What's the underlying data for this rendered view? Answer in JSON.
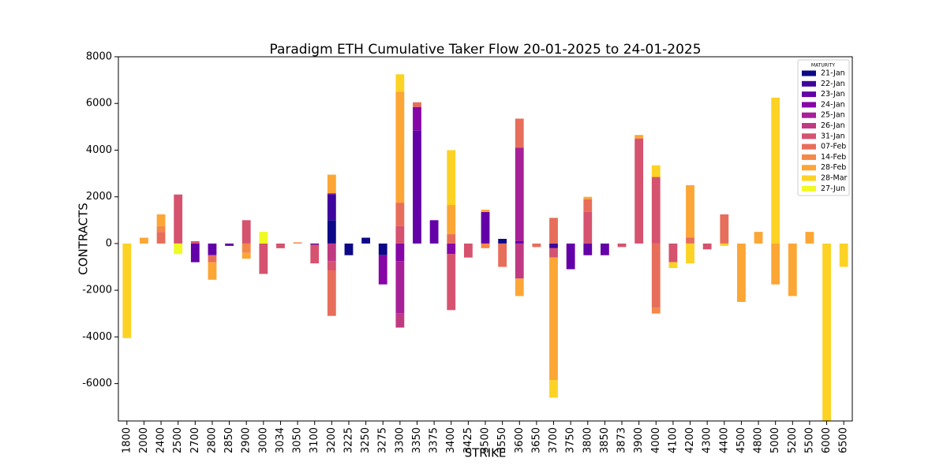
{
  "chart_data": {
    "type": "bar",
    "stacked": true,
    "title": "Paradigm ETH Cumulative Taker Flow 20-01-2025 to 24-01-2025",
    "x_label": "STRIKE",
    "y_label": "CONTRACTS",
    "legend_title": "MATURITY",
    "legend_position": "upper right",
    "categories": [
      "1800",
      "2000",
      "2400",
      "2500",
      "2700",
      "2800",
      "2850",
      "2900",
      "3000",
      "3034",
      "3050",
      "3100",
      "3200",
      "3225",
      "3250",
      "3275",
      "3300",
      "3350",
      "3375",
      "3400",
      "3425",
      "3500",
      "3550",
      "3600",
      "3650",
      "3700",
      "3750",
      "3800",
      "3850",
      "3873",
      "3900",
      "4000",
      "4100",
      "4200",
      "4300",
      "4400",
      "4500",
      "4800",
      "5000",
      "5200",
      "5500",
      "6000",
      "6500"
    ],
    "ylim": [
      -7600,
      8000
    ],
    "yticks": [
      -6000,
      -4000,
      -2000,
      0,
      2000,
      4000,
      6000,
      8000
    ],
    "grid": false,
    "series": [
      {
        "name": "21-Jan",
        "color": "#0d0887",
        "values": [
          0,
          0,
          0,
          0,
          0,
          0,
          0,
          0,
          0,
          0,
          0,
          0,
          1000,
          -500,
          250,
          -500,
          0,
          0,
          0,
          0,
          0,
          0,
          200,
          0,
          0,
          0,
          0,
          0,
          0,
          0,
          0,
          0,
          0,
          0,
          0,
          0,
          0,
          0,
          0,
          0,
          0,
          0,
          0
        ]
      },
      {
        "name": "22-Jan",
        "color": "#3e049c",
        "values": [
          0,
          0,
          0,
          0,
          0,
          0,
          0,
          0,
          0,
          0,
          0,
          0,
          1100,
          0,
          0,
          0,
          0,
          0,
          0,
          0,
          0,
          0,
          0,
          0,
          0,
          -200,
          0,
          0,
          0,
          0,
          0,
          0,
          0,
          0,
          0,
          0,
          0,
          0,
          0,
          0,
          0,
          0,
          0
        ]
      },
      {
        "name": "23-Jan",
        "color": "#6300a7",
        "values": [
          0,
          0,
          0,
          0,
          -800,
          -500,
          -100,
          0,
          0,
          0,
          0,
          -50,
          50,
          0,
          0,
          0,
          0,
          4850,
          1000,
          0,
          0,
          1350,
          0,
          100,
          0,
          0,
          -1100,
          -500,
          -500,
          0,
          0,
          0,
          0,
          0,
          0,
          0,
          0,
          0,
          0,
          0,
          0,
          0,
          0
        ]
      },
      {
        "name": "24-Jan",
        "color": "#8606a6",
        "values": [
          0,
          0,
          0,
          0,
          0,
          0,
          0,
          0,
          0,
          0,
          0,
          0,
          0,
          0,
          0,
          -1250,
          -750,
          1000,
          0,
          -450,
          0,
          0,
          0,
          0,
          0,
          0,
          0,
          0,
          0,
          0,
          0,
          0,
          0,
          0,
          0,
          0,
          0,
          0,
          0,
          0,
          0,
          0,
          0
        ]
      },
      {
        "name": "25-Jan",
        "color": "#a62098",
        "values": [
          0,
          0,
          0,
          0,
          0,
          0,
          0,
          0,
          0,
          0,
          0,
          0,
          0,
          0,
          0,
          0,
          -2250,
          0,
          0,
          0,
          0,
          0,
          0,
          4000,
          0,
          0,
          0,
          0,
          0,
          0,
          0,
          0,
          0,
          0,
          0,
          0,
          0,
          0,
          0,
          0,
          0,
          0,
          0
        ]
      },
      {
        "name": "26-Jan",
        "color": "#c03a83",
        "values": [
          0,
          0,
          0,
          0,
          0,
          0,
          0,
          0,
          0,
          0,
          0,
          0,
          -750,
          0,
          0,
          0,
          -600,
          0,
          0,
          0,
          0,
          0,
          0,
          -1500,
          0,
          0,
          0,
          0,
          0,
          0,
          0,
          0,
          0,
          0,
          0,
          0,
          0,
          0,
          0,
          0,
          0,
          0,
          0
        ]
      },
      {
        "name": "31-Jan",
        "color": "#d5536f",
        "values": [
          0,
          0,
          0,
          2100,
          100,
          0,
          0,
          1000,
          -1300,
          -200,
          0,
          -800,
          -400,
          0,
          0,
          0,
          750,
          0,
          0,
          -2400,
          -600,
          0,
          0,
          0,
          0,
          -400,
          0,
          1350,
          0,
          -150,
          4500,
          2850,
          -800,
          0,
          -250,
          0,
          0,
          0,
          0,
          0,
          0,
          0,
          0
        ]
      },
      {
        "name": "07-Feb",
        "color": "#e76e5b",
        "values": [
          0,
          0,
          500,
          0,
          0,
          -300,
          0,
          0,
          0,
          0,
          0,
          0,
          -1950,
          0,
          0,
          0,
          1000,
          200,
          0,
          400,
          0,
          0,
          -1000,
          1250,
          -150,
          1100,
          0,
          550,
          0,
          0,
          0,
          -2750,
          0,
          250,
          0,
          1250,
          0,
          0,
          0,
          0,
          0,
          0,
          0
        ]
      },
      {
        "name": "14-Feb",
        "color": "#f48849",
        "values": [
          0,
          0,
          250,
          0,
          0,
          0,
          0,
          -400,
          0,
          0,
          50,
          0,
          0,
          0,
          0,
          0,
          0,
          0,
          0,
          0,
          0,
          -200,
          0,
          0,
          0,
          0,
          0,
          0,
          0,
          0,
          0,
          -250,
          0,
          0,
          0,
          0,
          0,
          0,
          0,
          0,
          0,
          0,
          0
        ]
      },
      {
        "name": "28-Feb",
        "color": "#fca636",
        "values": [
          0,
          250,
          500,
          0,
          0,
          -750,
          0,
          -250,
          0,
          0,
          0,
          0,
          800,
          0,
          0,
          0,
          4750,
          0,
          0,
          1250,
          0,
          100,
          0,
          -750,
          0,
          -5250,
          0,
          100,
          0,
          0,
          150,
          0,
          0,
          2250,
          0,
          0,
          -2500,
          500,
          -1750,
          -2250,
          500,
          0,
          0
        ]
      },
      {
        "name": "28-Mar",
        "color": "#fcd225",
        "values": [
          -4050,
          0,
          0,
          0,
          0,
          0,
          0,
          0,
          0,
          0,
          0,
          0,
          0,
          0,
          0,
          0,
          750,
          0,
          0,
          2350,
          0,
          0,
          0,
          0,
          0,
          -750,
          0,
          0,
          0,
          0,
          0,
          500,
          -250,
          -850,
          0,
          -100,
          0,
          0,
          6250,
          0,
          0,
          -7700,
          -1000
        ]
      },
      {
        "name": "27-Jun",
        "color": "#f0f921",
        "values": [
          0,
          0,
          0,
          -450,
          0,
          0,
          0,
          0,
          500,
          0,
          0,
          0,
          0,
          0,
          0,
          0,
          0,
          0,
          0,
          0,
          0,
          0,
          0,
          0,
          0,
          0,
          0,
          0,
          0,
          0,
          0,
          0,
          0,
          0,
          0,
          0,
          0,
          0,
          0,
          0,
          0,
          0,
          0
        ]
      }
    ]
  }
}
